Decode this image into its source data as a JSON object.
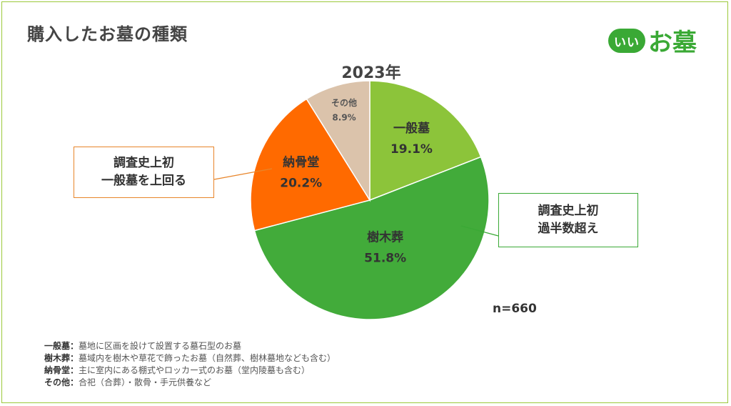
{
  "title": "購入したお墓の種類",
  "logo": {
    "badge": "いい",
    "text": "お墓"
  },
  "chart_data": {
    "type": "pie",
    "title": "2023年",
    "slices": [
      {
        "name": "一般墓",
        "value": 19.1,
        "label": "19.1%",
        "color": "#8cc43a"
      },
      {
        "name": "樹木葬",
        "value": 51.8,
        "label": "51.8%",
        "color": "#42ab3a"
      },
      {
        "name": "納骨堂",
        "value": 20.2,
        "label": "20.2%",
        "color": "#ff6a00"
      },
      {
        "name": "その他",
        "value": 8.9,
        "label": "8.9%",
        "color": "#dbc3ab"
      }
    ],
    "annotations": [
      "n=660"
    ]
  },
  "callouts": {
    "left": {
      "line1": "調査史上初",
      "line2": "一般墓を上回る"
    },
    "right": {
      "line1": "調査史上初",
      "line2": "過半数超え"
    }
  },
  "sample_size": "n=660",
  "notes": [
    {
      "term": "一般墓：",
      "desc": "墓地に区画を設けて設置する墓石型のお墓"
    },
    {
      "term": "樹木葬：",
      "desc": "墓域内を樹木や草花で飾ったお墓（自然葬、樹林墓地なども含む）"
    },
    {
      "term": "納骨堂：",
      "desc": "主に室内にある棚式やロッカー式のお墓（堂内陵墓も含む）"
    },
    {
      "term": "その他：",
      "desc": "合祀（合葬）・散骨・手元供養など"
    }
  ]
}
